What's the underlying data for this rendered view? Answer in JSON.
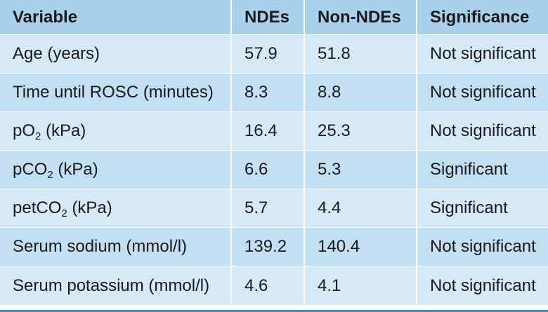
{
  "table": {
    "headers": [
      "Variable",
      "NDEs",
      "Non-NDEs",
      "Significance"
    ],
    "rows": [
      {
        "variable": "Age (years)",
        "ndes": "57.9",
        "non_ndes": "51.8",
        "significance": "Not significant"
      },
      {
        "variable": "Time until ROSC (minutes)",
        "ndes": "8.3",
        "non_ndes": "8.8",
        "significance": "Not significant"
      },
      {
        "variable_pre": "pO",
        "variable_sub": "2",
        "variable_post": " (kPa)",
        "ndes": "16.4",
        "non_ndes": "25.3",
        "significance": "Not significant"
      },
      {
        "variable_pre": "pCO",
        "variable_sub": "2",
        "variable_post": " (kPa)",
        "ndes": "6.6",
        "non_ndes": "5.3",
        "significance": "Significant"
      },
      {
        "variable_pre": "petCO",
        "variable_sub": "2",
        "variable_post": " (kPa)",
        "ndes": "5.7",
        "non_ndes": "4.4",
        "significance": "Significant"
      },
      {
        "variable": "Serum sodium (mmol/l)",
        "ndes": "139.2",
        "non_ndes": "140.4",
        "significance": "Not significant"
      },
      {
        "variable": "Serum potassium (mmol/l)",
        "ndes": "4.6",
        "non_ndes": "4.1",
        "significance": "Not significant"
      }
    ]
  },
  "colors": {
    "header_bg": "#a9d1ee",
    "row_light": "#d6e9f7",
    "row_dark": "#c2dff3",
    "bottom_rule": "#3a8fd0"
  }
}
